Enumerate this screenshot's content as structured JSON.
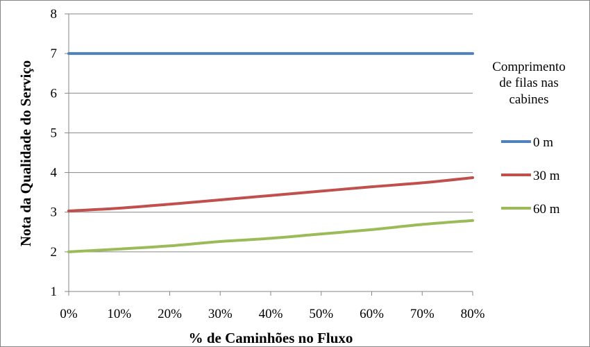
{
  "chart_data": {
    "type": "line",
    "title": "",
    "xlabel": "% de Caminhões no Fluxo",
    "ylabel": "Nota da Qualidade do Serviço",
    "x": [
      0,
      10,
      20,
      30,
      40,
      50,
      60,
      70,
      80
    ],
    "x_tick_labels": [
      "0%",
      "10%",
      "20%",
      "30%",
      "40%",
      "50%",
      "60%",
      "70%",
      "80%"
    ],
    "xlim": [
      0,
      80
    ],
    "ylim": [
      1,
      8
    ],
    "y_ticks": [
      1,
      2,
      3,
      4,
      5,
      6,
      7,
      8
    ],
    "grid": "horizontal",
    "legend": {
      "title_lines": [
        "Comprimento",
        "de filas nas",
        "cabines"
      ],
      "placement": "right"
    },
    "series": [
      {
        "name": "0 m",
        "color": "#4f81bd",
        "values": [
          7.0,
          7.0,
          7.0,
          7.0,
          7.0,
          7.0,
          7.0,
          7.0,
          7.0
        ]
      },
      {
        "name": "30 m",
        "color": "#c0504d",
        "values": [
          3.03,
          3.1,
          3.2,
          3.31,
          3.42,
          3.53,
          3.64,
          3.74,
          3.87
        ]
      },
      {
        "name": "60 m",
        "color": "#9bbb59",
        "values": [
          2.0,
          2.07,
          2.15,
          2.26,
          2.34,
          2.45,
          2.56,
          2.69,
          2.79
        ]
      }
    ]
  }
}
